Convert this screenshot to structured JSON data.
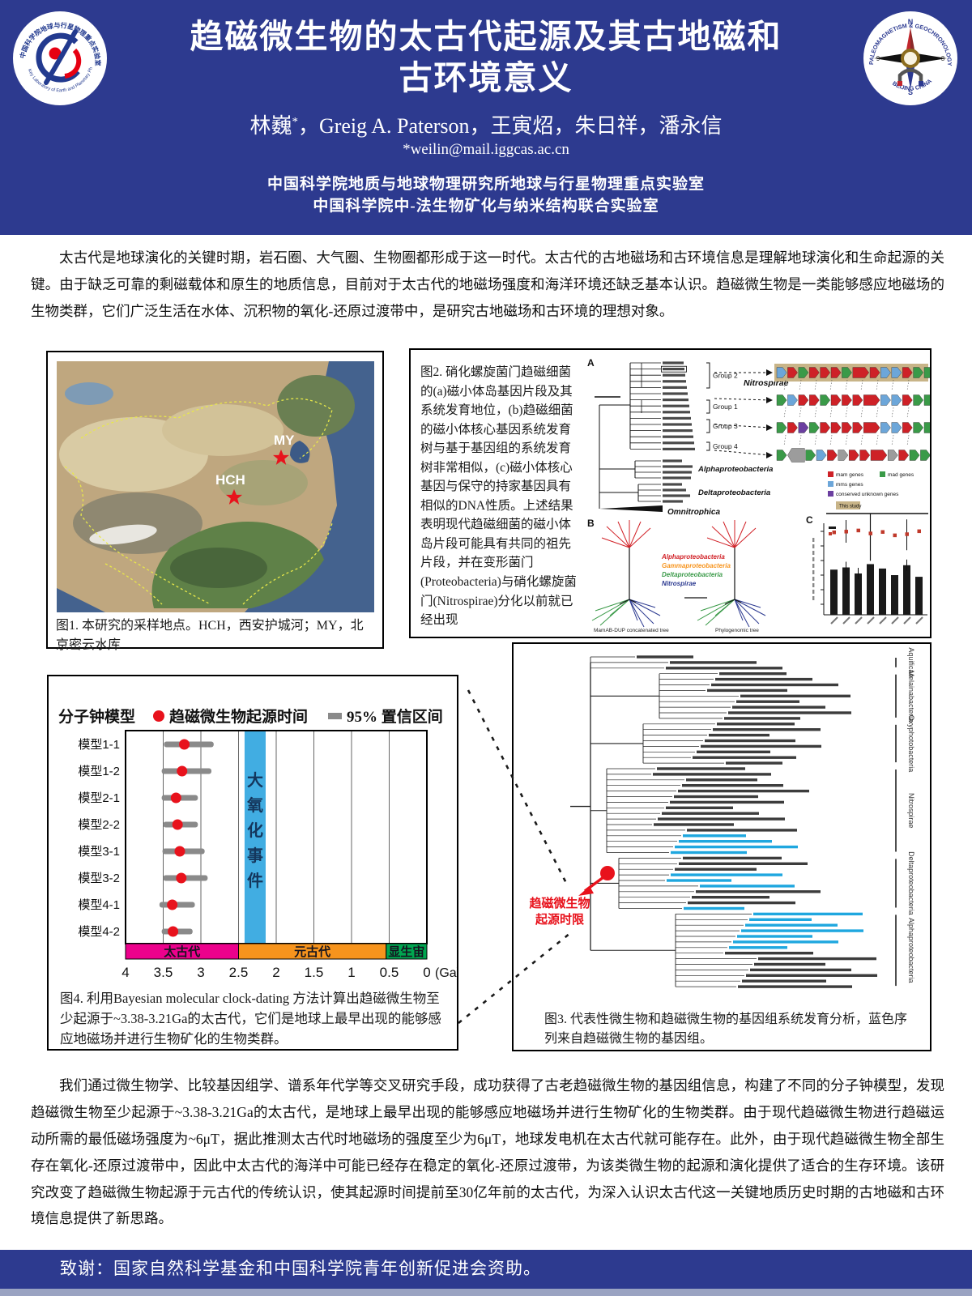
{
  "header": {
    "title_line1": "趋磁微生物的太古代起源及其古地磁和",
    "title_line2": "古环境意义",
    "authors_name1": "林巍",
    "authors_sup": "*",
    "authors_rest": "，Greig A. Paterson，王寅炤，朱日祥，潘永信",
    "email": "*weilin@mail.iggcas.ac.cn",
    "affil1": "中国科学院地质与地球物理研究所地球与行星物理重点实验室",
    "affil2": "中国科学院中-法生物矿化与纳米结构联合实验室",
    "left_logo": {
      "rim_top": "中国科学院地球与行星物理重点实验室",
      "rim_bottom": "Key Laboratory of Earth and Planetary Physics, CAS",
      "navy": "#223a8f",
      "red": "#e60012"
    },
    "right_logo": {
      "rim_top": "PALEOMAGNETISM & GEOCHRONOLOGY LAB",
      "rim_bottom": "BEIJING CHINA",
      "north": "N",
      "south": "S",
      "west": "9",
      "east": "3",
      "navy": "#2b3990",
      "red": "#c1272d",
      "gold": "#8c6d1f"
    }
  },
  "intro": {
    "text": "太古代是地球演化的关键时期，岩石圈、大气圈、生物圈都形成于这一时代。太古代的古地磁场和古环境信息是理解地球演化和生命起源的关键。由于缺乏可靠的剩磁载体和原生的地质信息，目前对于太古代的地磁场强度和海洋环境还缺乏基本认识。趋磁微生物是一类能够感应地磁场的生物类群，它们广泛生活在水体、沉积物的氧化-还原过渡带中，是研究古地磁场和古环境的理想对象。"
  },
  "fig1": {
    "caption": "图1. 本研究的采样地点。HCH，西安护城河；MY，北京密云水库",
    "site_my": "MY",
    "site_hch": "HCH"
  },
  "fig2": {
    "caption": "图2. 硝化螺旋菌门趋磁细菌的(a)磁小体岛基因片段及其系统发育地位，(b)趋磁细菌的磁小体核心基因系统发育树与基于基因组的系统发育树非常相似，(c)磁小体核心基因与保守的持家基因具有相似的DNA性质。上述结果表明现代趋磁细菌的磁小体岛片段可能具有共同的祖先片段，并在变形菌门(Proteobacteria)与硝化螺旋菌门(Nitrospirae)分化以前就已经出现",
    "panel_a": "A",
    "panel_b": "B",
    "panel_c": "C",
    "groups": [
      "Group 2",
      "Group 1",
      "Group 3",
      "Group 4"
    ],
    "clade_nitrospirae": "Nitrospirae",
    "clade_alpha": "Alphaproteobacteria",
    "clade_delta": "Deltaproteobacteria",
    "clade_omni": "Omnitrophica",
    "gene_rows": [
      {
        "highlight": true,
        "codes": [
          "b",
          "r",
          "g",
          "r",
          "r",
          "r",
          "g",
          "R",
          "r",
          "b",
          "b",
          "r",
          "g",
          "g"
        ]
      },
      {
        "highlight": false,
        "codes": [
          "g",
          "b",
          "r",
          "r",
          "g",
          "r",
          "r",
          "r",
          "R",
          "b",
          "b",
          "r",
          "g",
          "g"
        ]
      },
      {
        "highlight": false,
        "codes": [
          "g",
          "r",
          "p",
          "g",
          "r",
          "r",
          "r",
          "r",
          "R",
          "b",
          "b",
          "r",
          "g",
          "g"
        ]
      },
      {
        "highlight": false,
        "codes": [
          "g",
          "Y",
          "g",
          "b",
          "r",
          "y",
          "r",
          "r",
          "R",
          "y",
          "r",
          "g",
          "g"
        ]
      }
    ],
    "gene_colors": {
      "r": "#ce2127",
      "g": "#3a9a48",
      "b": "#6ca6d9",
      "p": "#6b3fa0",
      "y": "#9c9c9c",
      "R": "#ce2127",
      "Y": "#9c9c9c"
    },
    "highlight_bg": "#c8b488",
    "mgc_legend": [
      {
        "color": "#ce2127",
        "label": "mam genes"
      },
      {
        "color": "#3a9a48",
        "label": "mad genes"
      },
      {
        "color": "#6ca6d9",
        "label": "mms genes"
      },
      {
        "color": "#6b3fa0",
        "label": "conserved unknown genes"
      }
    ],
    "highlight_label": "This study",
    "panelb_legend": [
      {
        "color": "#d12026",
        "label": "Alphaproteobacteria"
      },
      {
        "color": "#f7941d",
        "label": "Gammaproteobacteria"
      },
      {
        "color": "#3a9a48",
        "label": "Deltaproteobacteria"
      },
      {
        "color": "#2b3990",
        "label": "Nitrospirae"
      }
    ],
    "panelb_captions": [
      "MamAB-DUP concatenated tree",
      "Phylogenomic tree"
    ],
    "panel_c_chart": {
      "type": "bar",
      "note": "approximate relative values read from pixels; axis labels illegible",
      "bars_rel": [
        0.82,
        0.86,
        0.75,
        0.92,
        0.84,
        0.72,
        0.9,
        0.69
      ],
      "dots_rel": [
        0.74,
        0.76,
        0.79,
        0.71,
        0.75,
        0.66,
        0.69,
        0.77
      ],
      "bar_color": "#1a1a1a",
      "dot_color": "#c0392b"
    }
  },
  "fig4": {
    "caption": "图4.  利用Bayesian molecular clock-dating 方法计算出趋磁微生物至少起源于~3.38-3.21Ga的太古代，它们是地球上最早出现的能够感应地磁场并进行生物矿化的生物类群。",
    "chart_data": {
      "type": "scatter",
      "title": "分子钟模型",
      "legend": [
        {
          "marker": "dot",
          "color": "#e8121c",
          "label": "趋磁微生物起源时间"
        },
        {
          "marker": "bar",
          "color": "#8a8a8a",
          "label": "95% 置信区间"
        }
      ],
      "categories": [
        "模型1-1",
        "模型1-2",
        "模型2-1",
        "模型2-2",
        "模型3-1",
        "模型3-2",
        "模型4-1",
        "模型4-2"
      ],
      "origin_ga": [
        3.22,
        3.25,
        3.33,
        3.31,
        3.28,
        3.26,
        3.38,
        3.37
      ],
      "ci_ga": [
        [
          3.49,
          2.83
        ],
        [
          3.52,
          2.86
        ],
        [
          3.52,
          3.04
        ],
        [
          3.5,
          3.04
        ],
        [
          3.51,
          2.95
        ],
        [
          3.5,
          2.91
        ],
        [
          3.55,
          3.08
        ],
        [
          3.52,
          3.11
        ]
      ],
      "x_ticks": [
        4,
        3.5,
        3,
        2.5,
        2,
        1.5,
        1,
        0.5,
        0
      ],
      "x_unit": "(Ga)",
      "xlim": [
        4,
        0
      ],
      "goe_band": {
        "label": "大氧化事件",
        "from": 2.42,
        "to": 2.14,
        "color": "#41ade2"
      },
      "era_bar": [
        {
          "label": "太古代",
          "from": 4,
          "to": 2.5,
          "color": "#ec018c"
        },
        {
          "label": "元古代",
          "from": 2.5,
          "to": 0.54,
          "color": "#f7941d"
        },
        {
          "label": "显生宙",
          "from": 0.54,
          "to": 0,
          "color": "#00a650"
        }
      ]
    }
  },
  "fig3": {
    "caption": "图3. 代表性微生物和趋磁微生物的基因组系统发育分析，蓝色序列来自趋磁微生物的基因组。",
    "annotation_line1": "趋磁微生物",
    "annotation_line2": "起源时限",
    "annotation_color": "#e8121c",
    "mtb_color": "#1fa7df",
    "clades": [
      {
        "label": "Aquificae",
        "n": 3,
        "cyan": []
      },
      {
        "label": "Melainabacteria",
        "n": 9,
        "cyan": []
      },
      {
        "label": "Oxyphotobacteria",
        "n": 8,
        "cyan": []
      },
      {
        "label": "Nitrospirae",
        "n": 16,
        "cyan": [
          12,
          13,
          14,
          15
        ]
      },
      {
        "label": "Deltaproteobacteria",
        "n": 10,
        "cyan": [
          3,
          4,
          5,
          9
        ]
      },
      {
        "label": "Alphaproteobacteria",
        "n": 14,
        "cyan": [
          0,
          1,
          2,
          3,
          4,
          5,
          6
        ]
      }
    ]
  },
  "para2": {
    "text": "我们通过微生物学、比较基因组学、谱系年代学等交叉研究手段，成功获得了古老趋磁微生物的基因组信息，构建了不同的分子钟模型，发现趋磁微生物至少起源于~3.38-3.21Ga的太古代，是地球上最早出现的能够感应地磁场并进行生物矿化的生物类群。由于现代趋磁微生物进行趋磁运动所需的最低磁场强度为~6μT，据此推测太古代时地磁场的强度至少为6μT，地球发电机在太古代就可能存在。此外，由于现代趋磁微生物全部生存在氧化-还原过渡带中，因此中太古代的海洋中可能已经存在稳定的氧化-还原过渡带，为该类微生物的起源和演化提供了适合的生存环境。该研究改变了趋磁微生物起源于元古代的传统认识，使其起源时间提前至30亿年前的太古代，为深入认识太古代这一关键地质历史时期的古地磁和古环境信息提供了新思路。"
  },
  "ack": {
    "text": "致谢：国家自然科学基金和中国科学院青年创新促进会资助。"
  }
}
